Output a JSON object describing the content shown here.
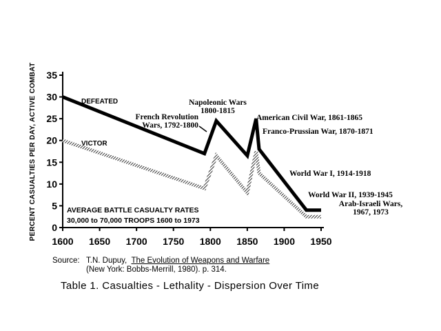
{
  "chart_data": {
    "type": "line",
    "title": "",
    "xlabel": "",
    "ylabel": "PERCENT CASUALTIES PER DAY, ACTIVE COMBAT",
    "xlim": [
      1600,
      1950
    ],
    "ylim": [
      0,
      35
    ],
    "xticks": [
      1600,
      1650,
      1700,
      1750,
      1800,
      1850,
      1900,
      1950
    ],
    "yticks": [
      0,
      5,
      10,
      15,
      20,
      25,
      30,
      35
    ],
    "series": [
      {
        "name": "DEFEATED",
        "color": "#000000",
        "style": "solid",
        "x": [
          1600,
          1792,
          1808,
          1850,
          1862,
          1866,
          1930,
          1950
        ],
        "y": [
          30,
          17,
          24.5,
          16.5,
          25,
          18,
          4,
          4
        ]
      },
      {
        "name": "VICTOR",
        "color": "#8a8a8a",
        "style": "hatched",
        "x": [
          1600,
          1792,
          1808,
          1850,
          1862,
          1866,
          1930,
          1950
        ],
        "y": [
          20,
          9,
          16.5,
          8,
          17.5,
          12.5,
          2.5,
          2.5
        ]
      }
    ],
    "annotations": [
      {
        "id": "napoleonic",
        "lines": [
          "Napoleonic Wars",
          "1800-1815"
        ]
      },
      {
        "id": "french",
        "lines": [
          "French Revolution",
          "Wars, 1792-1800"
        ]
      },
      {
        "id": "acw",
        "lines": [
          "American Civil War, 1861-1865"
        ]
      },
      {
        "id": "franco",
        "lines": [
          "Franco-Prussian War, 1870-1871"
        ]
      },
      {
        "id": "ww1",
        "lines": [
          "World War I, 1914-1918"
        ]
      },
      {
        "id": "ww2",
        "lines": [
          "World War II, 1939-1945"
        ]
      },
      {
        "id": "arab",
        "lines": [
          "Arab-Israeli Wars,",
          "1967, 1973"
        ]
      }
    ],
    "note_lines": [
      "AVERAGE BATTLE CASUALTY RATES",
      "30,000  to  70,000  TROOPS  1600  to  1973"
    ]
  },
  "source": {
    "prefix": "Source:",
    "author": "T.N. Dupuy,",
    "book": "The Evolution of Weapons and Warfare",
    "publisher": "(New York: Bobbs-Merrill, 1980). p. 314."
  },
  "caption": "Table 1.  Casualties - Lethality - Dispersion  Over  Time"
}
